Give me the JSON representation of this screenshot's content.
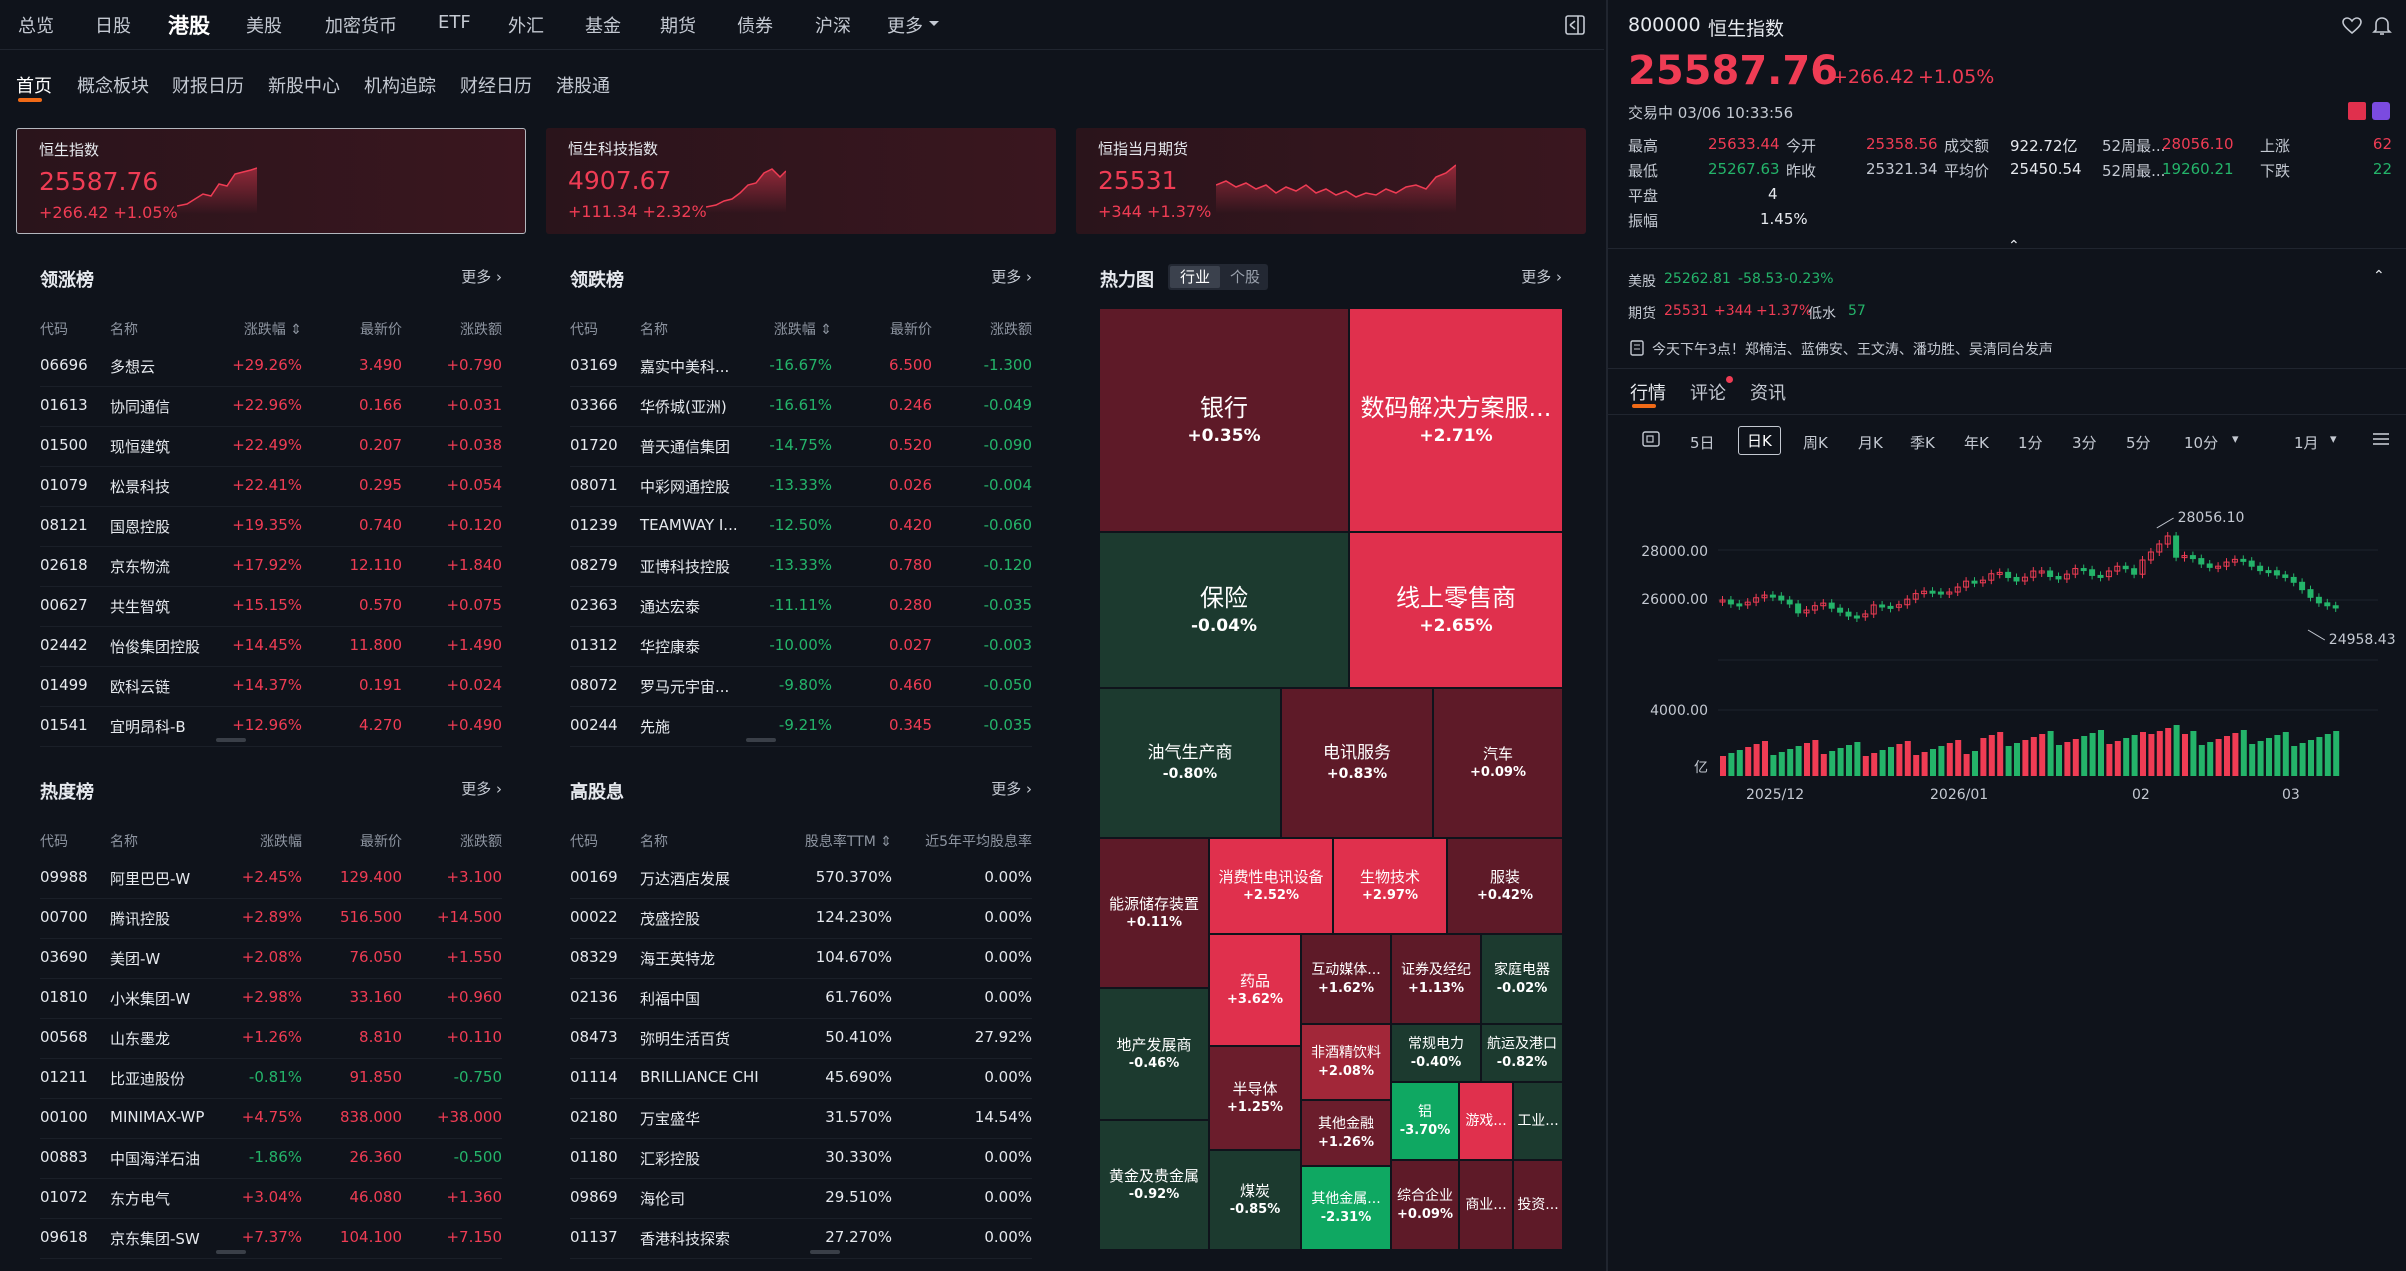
{
  "topnav": [
    "总览",
    "日股",
    "港股",
    "美股",
    "加密货币",
    "ETF",
    "外汇",
    "基金",
    "期货",
    "债券",
    "沪深",
    "更多"
  ],
  "subnav": [
    "首页",
    "概念板块",
    "财报日历",
    "新股中心",
    "机构追踪",
    "财经日历",
    "港股通"
  ],
  "cards": [
    {
      "title": "恒生指数",
      "value": "25587.76",
      "change": "+266.42 +1.05%"
    },
    {
      "title": "恒生科技指数",
      "value": "4907.67",
      "change": "+111.34 +2.32%"
    },
    {
      "title": "恒指当月期货",
      "value": "25531",
      "change": "+344 +1.37%"
    }
  ],
  "more": "更多",
  "gainers": {
    "title": "领涨榜",
    "cols": [
      "代码",
      "名称",
      "涨跌幅",
      "最新价",
      "涨跌额"
    ],
    "rows": [
      [
        "06696",
        "多想云",
        "+29.26%",
        "3.490",
        "+0.790"
      ],
      [
        "01613",
        "协同通信",
        "+22.96%",
        "0.166",
        "+0.031"
      ],
      [
        "01500",
        "现恒建筑",
        "+22.49%",
        "0.207",
        "+0.038"
      ],
      [
        "01079",
        "松景科技",
        "+22.41%",
        "0.295",
        "+0.054"
      ],
      [
        "08121",
        "国恩控股",
        "+19.35%",
        "0.740",
        "+0.120"
      ],
      [
        "02618",
        "京东物流",
        "+17.92%",
        "12.110",
        "+1.840"
      ],
      [
        "00627",
        "共生智筑",
        "+15.15%",
        "0.570",
        "+0.075"
      ],
      [
        "02442",
        "怡俊集团控股",
        "+14.45%",
        "11.800",
        "+1.490"
      ],
      [
        "01499",
        "欧科云链",
        "+14.37%",
        "0.191",
        "+0.024"
      ],
      [
        "01541",
        "宜明昂科-B",
        "+12.96%",
        "4.270",
        "+0.490"
      ]
    ]
  },
  "losers": {
    "title": "领跌榜",
    "cols": [
      "代码",
      "名称",
      "涨跌幅",
      "最新价",
      "涨跌额"
    ],
    "rows": [
      [
        "03169",
        "嘉实中美科...",
        "-16.67%",
        "6.500",
        "-1.300"
      ],
      [
        "03366",
        "华侨城(亚洲)",
        "-16.61%",
        "0.246",
        "-0.049"
      ],
      [
        "01720",
        "普天通信集团",
        "-14.75%",
        "0.520",
        "-0.090"
      ],
      [
        "08071",
        "中彩网通控股",
        "-13.33%",
        "0.026",
        "-0.004"
      ],
      [
        "01239",
        "TEAMWAY I...",
        "-12.50%",
        "0.420",
        "-0.060"
      ],
      [
        "08279",
        "亚博科技控股",
        "-13.33%",
        "0.780",
        "-0.120"
      ],
      [
        "02363",
        "通达宏泰",
        "-11.11%",
        "0.280",
        "-0.035"
      ],
      [
        "01312",
        "华控康泰",
        "-10.00%",
        "0.027",
        "-0.003"
      ],
      [
        "08072",
        "罗马元宇宙...",
        "-9.80%",
        "0.460",
        "-0.050"
      ],
      [
        "00244",
        "先施",
        "-9.21%",
        "0.345",
        "-0.035"
      ]
    ]
  },
  "hot": {
    "title": "热度榜",
    "cols": [
      "代码",
      "名称",
      "涨跌幅",
      "最新价",
      "涨跌额"
    ],
    "rows": [
      [
        "09988",
        "阿里巴巴-W",
        "+2.45%",
        "129.400",
        "+3.100"
      ],
      [
        "00700",
        "腾讯控股",
        "+2.89%",
        "516.500",
        "+14.500"
      ],
      [
        "03690",
        "美团-W",
        "+2.08%",
        "76.050",
        "+1.550"
      ],
      [
        "01810",
        "小米集团-W",
        "+2.98%",
        "33.160",
        "+0.960"
      ],
      [
        "00568",
        "山东墨龙",
        "+1.26%",
        "8.810",
        "+0.110"
      ],
      [
        "01211",
        "比亚迪股份",
        "-0.81%",
        "91.850",
        "-0.750"
      ],
      [
        "00100",
        "MINIMAX-WP",
        "+4.75%",
        "838.000",
        "+38.000"
      ],
      [
        "00883",
        "中国海洋石油",
        "-1.86%",
        "26.360",
        "-0.500"
      ],
      [
        "01072",
        "东方电气",
        "+3.04%",
        "46.080",
        "+1.360"
      ],
      [
        "09618",
        "京东集团-SW",
        "+7.37%",
        "104.100",
        "+7.150"
      ]
    ]
  },
  "dividend": {
    "title": "高股息",
    "cols": [
      "代码",
      "名称",
      "股息率TTM",
      "近5年平均股息率"
    ],
    "rows": [
      [
        "00169",
        "万达酒店发展",
        "570.370%",
        "0.00%"
      ],
      [
        "00022",
        "茂盛控股",
        "124.230%",
        "0.00%"
      ],
      [
        "08329",
        "海王英特龙",
        "104.670%",
        "0.00%"
      ],
      [
        "02136",
        "利福中国",
        "61.760%",
        "0.00%"
      ],
      [
        "08473",
        "弥明生活百货",
        "50.410%",
        "27.92%"
      ],
      [
        "01114",
        "BRILLIANCE CHI",
        "45.690%",
        "0.00%"
      ],
      [
        "02180",
        "万宝盛华",
        "31.570%",
        "14.54%"
      ],
      [
        "01180",
        "汇彩控股",
        "30.330%",
        "0.00%"
      ],
      [
        "09869",
        "海伦司",
        "29.510%",
        "0.00%"
      ],
      [
        "01137",
        "香港科技探索",
        "27.270%",
        "0.00%"
      ]
    ]
  },
  "heatmap": {
    "title": "热力图",
    "tabs": [
      "行业",
      "个股"
    ],
    "tiles": [
      [
        "银行",
        "+0.35%"
      ],
      [
        "数码解决方案服...",
        "+2.71%"
      ],
      [
        "保险",
        "-0.04%"
      ],
      [
        "线上零售商",
        "+2.65%"
      ],
      [
        "油气生产商",
        "-0.80%"
      ],
      [
        "电讯服务",
        "+0.83%"
      ],
      [
        "汽车",
        "+0.09%"
      ],
      [
        "能源储存装置",
        "+0.11%"
      ],
      [
        "消费性电讯设备",
        "+2.52%"
      ],
      [
        "生物技术",
        "+2.97%"
      ],
      [
        "服装",
        "+0.42%"
      ],
      [
        "药品",
        "+3.62%"
      ],
      [
        "互动媒体...",
        "+1.62%"
      ],
      [
        "证券及经纪",
        "+1.13%"
      ],
      [
        "家庭电器",
        "-0.02%"
      ],
      [
        "地产发展商",
        "-0.46%"
      ],
      [
        "非酒精饮料",
        "+2.08%"
      ],
      [
        "常规电力",
        "-0.40%"
      ],
      [
        "航运及港口",
        "-0.82%"
      ],
      [
        "半导体",
        "+1.25%"
      ],
      [
        "其他金融",
        "+1.26%"
      ],
      [
        "铝",
        "-3.70%"
      ],
      [
        "游戏...",
        ""
      ],
      [
        "工业...",
        ""
      ],
      [
        "黄金及贵金属",
        "-0.92%"
      ],
      [
        "煤炭",
        "-0.85%"
      ],
      [
        "其他金属...",
        "-2.31%"
      ],
      [
        "综合企业",
        "+0.09%"
      ],
      [
        "商业...",
        ""
      ],
      [
        "投资...",
        ""
      ]
    ]
  },
  "quote": {
    "code": "800000",
    "name": "恒生指数",
    "price": "25587.76",
    "arrow": "↑",
    "change": "+266.42",
    "pct": "+1.05%",
    "status": "交易中 03/06 10:33:56",
    "stats": [
      [
        "最高",
        "25633.44"
      ],
      [
        "今开",
        "25358.56"
      ],
      [
        "成交额",
        "922.72亿"
      ],
      [
        "52周最...",
        "28056.10"
      ],
      [
        "上涨",
        "62"
      ],
      [
        "最低",
        "25267.63"
      ],
      [
        "昨收",
        "25321.34"
      ],
      [
        "平均价",
        "25450.54"
      ],
      [
        "52周最...",
        "19260.21"
      ],
      [
        "下跌",
        "22"
      ],
      [
        "平盘",
        "4"
      ],
      [
        "振幅",
        "1.45%"
      ]
    ],
    "us": {
      "label": "美股",
      "price": "25262.81",
      "chg": "-58.53",
      "pct": "-0.23%"
    },
    "fut": {
      "label": "期货",
      "price": "25531",
      "chg": "+344",
      "pct": "+1.37%",
      "low": "低水",
      "lowv": "57"
    },
    "news": "今天下午3点！郑楠洁、蓝佛安、王文涛、潘功胜、吴清同台发声"
  },
  "rtabs": [
    "行情",
    "评论",
    "资讯"
  ],
  "periods": [
    "5日",
    "日K",
    "周K",
    "月K",
    "季K",
    "年K",
    "1分",
    "3分",
    "5分",
    "10分",
    "1月"
  ],
  "chart_data": {
    "type": "candlestick",
    "ylabels": [
      "28000.00",
      "26000.00"
    ],
    "vol_label": "4000.00",
    "vol_unit": "亿",
    "xlabels": [
      "2025/12",
      "2026/01",
      "02",
      "03"
    ],
    "high_label": "28056.10",
    "low_label": "24958.43"
  }
}
